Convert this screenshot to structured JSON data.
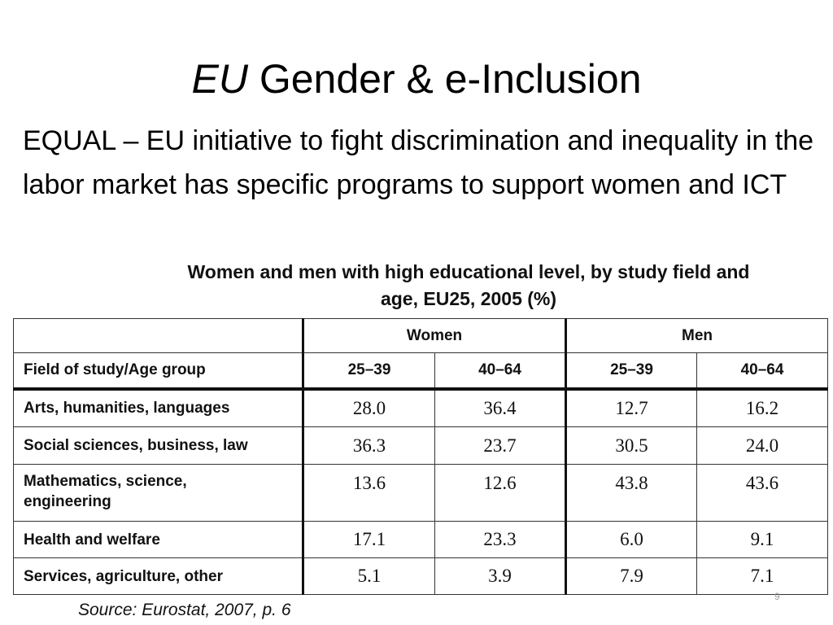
{
  "slide": {
    "title_em": "EU",
    "title_rest": " Gender & e-Inclusion",
    "body": "EQUAL – EU initiative to fight discrimination and inequality in the labor market has specific programs to support women and ICT",
    "page_number": "9"
  },
  "table": {
    "caption_line1": "Women and men with high educational level, by study field and",
    "caption_line2": "age, EU25, 2005 (%)",
    "groups": [
      "Women",
      "Men"
    ],
    "row_header": "Field of study/Age group",
    "age_groups": [
      "25–39",
      "40–64",
      "25–39",
      "40–64"
    ],
    "rows": [
      {
        "field_lines": [
          "Arts, humanities, languages"
        ],
        "values": [
          "28.0",
          "36.4",
          "12.7",
          "16.2"
        ]
      },
      {
        "field_lines": [
          "Social sciences, business, law"
        ],
        "values": [
          "36.3",
          "23.7",
          "30.5",
          "24.0"
        ]
      },
      {
        "field_lines": [
          "Mathematics, science,",
          "engineering"
        ],
        "values": [
          "13.6",
          "12.6",
          "43.8",
          "43.6"
        ]
      },
      {
        "field_lines": [
          "Health and welfare"
        ],
        "values": [
          "17.1",
          "23.3",
          "6.0",
          "9.1"
        ]
      },
      {
        "field_lines": [
          "Services, agriculture, other"
        ],
        "values": [
          "5.1",
          "3.9",
          "7.9",
          "7.1"
        ]
      }
    ],
    "source": "Source: Eurostat, 2007, p. 6"
  }
}
